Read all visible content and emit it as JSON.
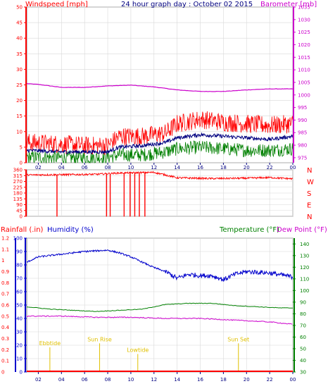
{
  "header": {
    "left_label": "Windspeed [mph]",
    "center_label": "24 hour graph day : October 02 2015",
    "right_label": "Barometer [mb]"
  },
  "colors": {
    "windspeed": "#ff0000",
    "gust": "#000080",
    "wind_green": "#008000",
    "barometer": "#cc00cc",
    "direction": "#ff0000",
    "humidity": "#0000cc",
    "temperature": "#008000",
    "dewpoint": "#cc00cc",
    "rainfall": "#ff0000",
    "annotation": "#e0c000",
    "grid": "#d8d8d8",
    "frame": "#808080"
  },
  "chart_data": [
    {
      "type": "line",
      "name": "wind-barometer",
      "y_left_ticks": [
        0,
        5,
        10,
        15,
        20,
        25,
        30,
        35,
        40,
        45,
        50
      ],
      "y_left_range": [
        0,
        50
      ],
      "y_right_ticks": [
        975,
        980,
        985,
        990,
        995,
        1000,
        1005,
        1010,
        1015,
        1020,
        1025,
        1030,
        1035
      ],
      "y_right_range": [
        973,
        1035
      ],
      "x_ticks": [
        "02",
        "04",
        "06",
        "08",
        "10",
        "12",
        "14",
        "16",
        "18",
        "20",
        "22",
        "00"
      ],
      "x_range": [
        1,
        24
      ],
      "barometer_profile": [
        [
          1,
          1004.5
        ],
        [
          2,
          1004.2
        ],
        [
          4,
          1003.0
        ],
        [
          6,
          1003.0
        ],
        [
          8,
          1003.6
        ],
        [
          10,
          1003.9
        ],
        [
          12,
          1003.2
        ],
        [
          14,
          1002.0
        ],
        [
          16,
          1001.4
        ],
        [
          18,
          1001.4
        ],
        [
          20,
          1002.0
        ],
        [
          22,
          1002.4
        ],
        [
          24,
          1002.4
        ]
      ],
      "wind_gust_profile": [
        [
          1,
          6.5
        ],
        [
          4,
          6.0
        ],
        [
          6,
          5.5
        ],
        [
          8,
          5.5
        ],
        [
          9,
          8.5
        ],
        [
          11,
          8.5
        ],
        [
          12,
          9.0
        ],
        [
          13,
          9.5
        ],
        [
          14,
          12.5
        ],
        [
          16,
          14.0
        ],
        [
          18,
          13.0
        ],
        [
          20,
          12.5
        ],
        [
          22,
          12.0
        ],
        [
          24,
          12.5
        ]
      ],
      "wind_avg_profile": [
        [
          1,
          4.0
        ],
        [
          4,
          3.5
        ],
        [
          6,
          3.5
        ],
        [
          8,
          3.5
        ],
        [
          9,
          5.0
        ],
        [
          11,
          5.5
        ],
        [
          12,
          6.0
        ],
        [
          13,
          6.5
        ],
        [
          14,
          8.0
        ],
        [
          16,
          9.0
        ],
        [
          18,
          8.5
        ],
        [
          20,
          8.0
        ],
        [
          22,
          7.5
        ],
        [
          24,
          8.5
        ]
      ],
      "wind_low_profile": [
        [
          1,
          1.8
        ],
        [
          4,
          1.6
        ],
        [
          6,
          1.6
        ],
        [
          8,
          1.8
        ],
        [
          9,
          2.5
        ],
        [
          11,
          2.5
        ],
        [
          12,
          3.0
        ],
        [
          13,
          3.5
        ],
        [
          14,
          4.5
        ],
        [
          16,
          5.0
        ],
        [
          18,
          4.5
        ],
        [
          20,
          4.0
        ],
        [
          22,
          4.0
        ],
        [
          24,
          4.5
        ]
      ]
    },
    {
      "type": "line",
      "name": "wind-direction",
      "y_left_ticks": [
        0,
        45,
        90,
        135,
        180,
        225,
        270,
        315,
        360
      ],
      "y_left_range": [
        0,
        360
      ],
      "y_right_labels": [
        "N",
        "W",
        "S",
        "E",
        "N"
      ],
      "x_ticks": [
        "02",
        "04",
        "06",
        "08",
        "10",
        "12",
        "14",
        "16",
        "18",
        "20",
        "22",
        "00"
      ],
      "x_range": [
        1,
        24
      ],
      "direction_profile": [
        [
          1,
          320
        ],
        [
          4,
          322
        ],
        [
          7,
          325
        ],
        [
          9,
          335
        ],
        [
          12,
          340
        ],
        [
          13,
          320
        ],
        [
          14,
          298
        ],
        [
          17,
          292
        ],
        [
          20,
          295
        ],
        [
          22,
          300
        ],
        [
          24,
          290
        ]
      ],
      "drops_to_zero_at": [
        3.6,
        7.9,
        8.2,
        9.4,
        9.9,
        10.3,
        10.7,
        11.2
      ]
    },
    {
      "type": "line",
      "name": "rain-humidity-temperature",
      "labels": {
        "rainfall": "Rainfall (.in)",
        "humidity": "Humidity (%)",
        "temperature": "Temperature (°F)",
        "dewpoint": "Dew Point (°F)"
      },
      "rain_ticks": [
        "0",
        "0.1",
        "0.2",
        "0.3",
        "0.4",
        "0.5",
        "0.6",
        "0.7",
        "0.8",
        "0.9",
        "1",
        "1.1",
        "1.2"
      ],
      "rain_range": [
        0,
        1.2
      ],
      "humidity_ticks": [
        0,
        10,
        20,
        30,
        40,
        50,
        60,
        70,
        80,
        90,
        100
      ],
      "humidity_range": [
        0,
        100
      ],
      "temp_ticks": [
        30,
        40,
        50,
        60,
        70,
        80,
        90,
        100,
        110,
        120,
        130,
        140
      ],
      "temp_range": [
        30,
        145
      ],
      "x_ticks": [
        "02",
        "04",
        "06",
        "08",
        "10",
        "12",
        "14",
        "16",
        "18",
        "20",
        "22",
        "00"
      ],
      "x_range": [
        1,
        24
      ],
      "humidity_profile": [
        [
          1,
          82
        ],
        [
          2,
          86
        ],
        [
          4,
          88
        ],
        [
          6,
          90
        ],
        [
          8,
          91
        ],
        [
          9,
          89
        ],
        [
          10,
          86
        ],
        [
          11,
          82
        ],
        [
          12,
          78
        ],
        [
          13,
          75
        ],
        [
          14,
          70
        ],
        [
          15,
          73
        ],
        [
          16,
          72
        ],
        [
          17,
          72
        ],
        [
          18,
          69
        ],
        [
          19,
          73
        ],
        [
          20,
          75
        ],
        [
          22,
          74
        ],
        [
          24,
          71
        ]
      ],
      "temperature_profile": [
        [
          1,
          86
        ],
        [
          3,
          84
        ],
        [
          5,
          83
        ],
        [
          7,
          82
        ],
        [
          9,
          83
        ],
        [
          11,
          84
        ],
        [
          13,
          88
        ],
        [
          15,
          89
        ],
        [
          17,
          89
        ],
        [
          19,
          87
        ],
        [
          21,
          86
        ],
        [
          23,
          85
        ],
        [
          24,
          85
        ]
      ],
      "dewpoint_profile": [
        [
          1,
          78
        ],
        [
          4,
          78
        ],
        [
          7,
          77
        ],
        [
          10,
          77
        ],
        [
          13,
          76
        ],
        [
          16,
          76
        ],
        [
          18,
          75
        ],
        [
          20,
          74
        ],
        [
          22,
          73
        ],
        [
          24,
          71
        ]
      ],
      "annotations": [
        {
          "text": "Ebbtide",
          "hour": 3.0,
          "humidity_level": 20
        },
        {
          "text": "Sun Rise",
          "hour": 7.3,
          "humidity_level": 23
        },
        {
          "text": "Lowtide",
          "hour": 10.6,
          "humidity_level": 15
        },
        {
          "text": "Sun Set",
          "hour": 19.3,
          "humidity_level": 23
        }
      ]
    }
  ]
}
